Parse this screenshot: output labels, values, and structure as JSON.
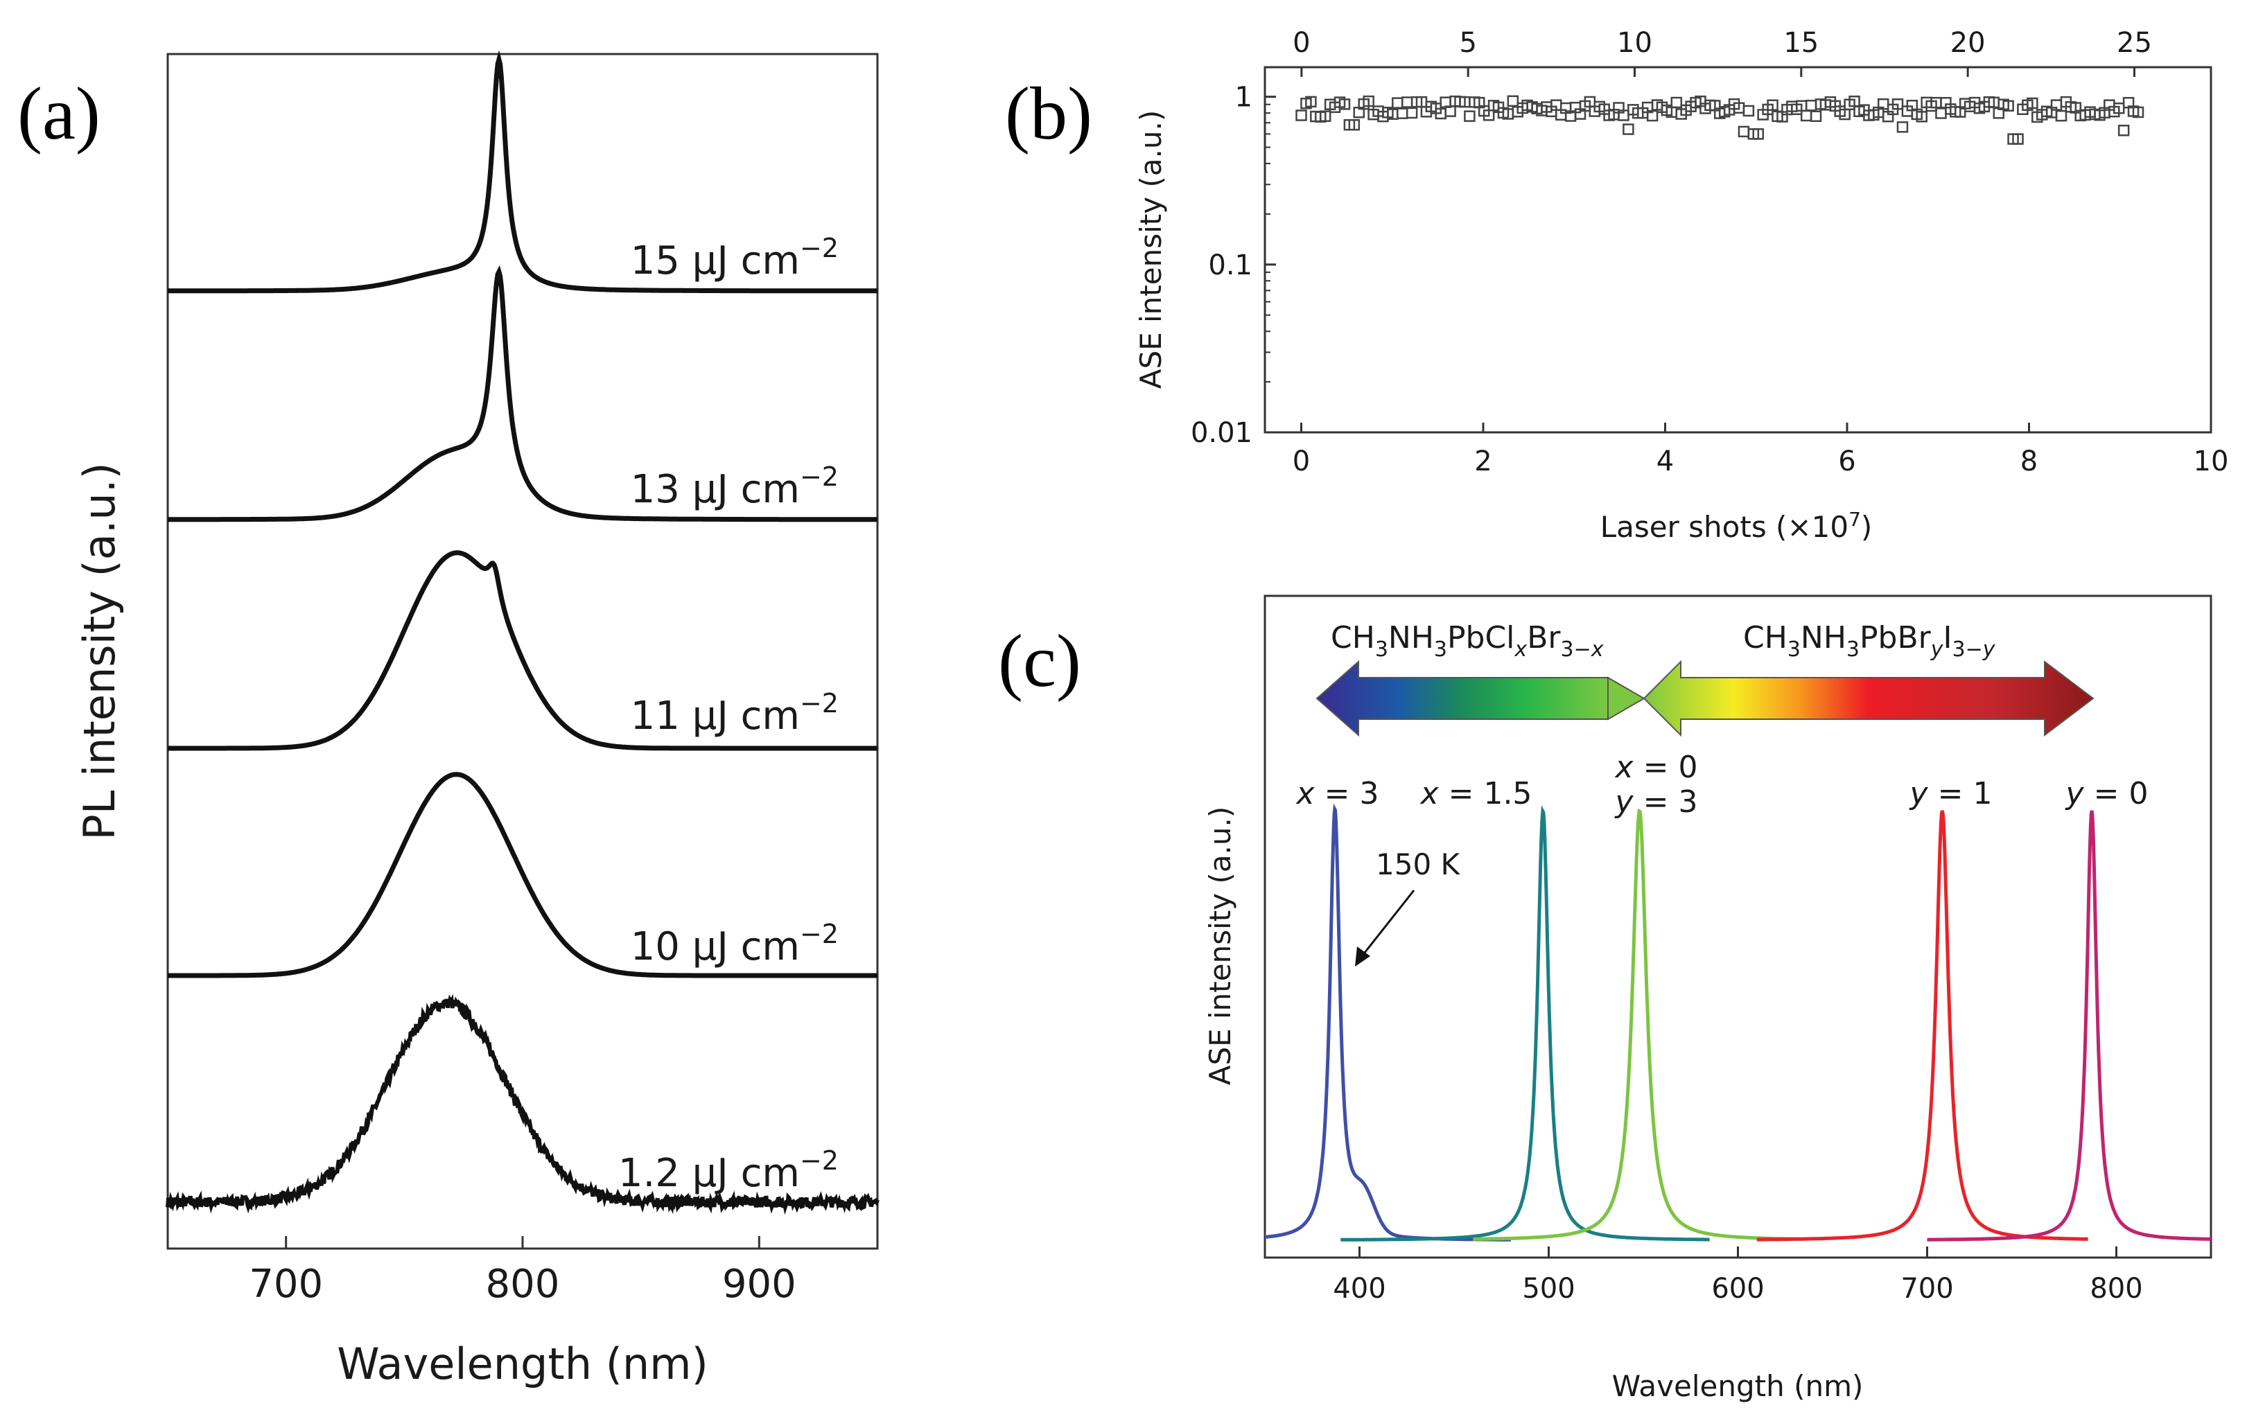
{
  "chart_data": [
    {
      "panel": "(a)",
      "type": "line",
      "xlabel": "Wavelength (nm)",
      "ylabel": "PL intensity (a.u.)",
      "xlim": [
        650,
        950
      ],
      "xticks": [
        700,
        800,
        900
      ],
      "color": "#111111",
      "series": [
        {
          "name": "15 μJ cm⁻²",
          "label_main": "15 μJ cm",
          "label_sup": "−2",
          "peak": 790,
          "peak_height": 0.97,
          "shoulder": 0.07,
          "narrow_width": 3.5,
          "broad_center": 770,
          "broad_width": 20
        },
        {
          "name": "13 μJ cm⁻²",
          "label_main": "13 μJ cm",
          "label_sup": "−2",
          "peak": 790,
          "peak_height": 0.92,
          "shoulder": 0.27,
          "narrow_width": 4.0,
          "broad_center": 770,
          "broad_width": 20
        },
        {
          "name": "11 μJ cm⁻²",
          "label_main": "11 μJ cm",
          "label_sup": "−2",
          "peak": 788,
          "peak_height": 0.15,
          "shoulder": 0.85,
          "narrow_width": 3.0,
          "broad_center": 772,
          "broad_width": 22
        },
        {
          "name": "10 μJ cm⁻²",
          "label_main": "10 μJ cm",
          "label_sup": "−2",
          "peak": 772,
          "peak_height": 0.0,
          "shoulder": 0.88,
          "narrow_width": 3.0,
          "broad_center": 772,
          "broad_width": 24
        },
        {
          "name": "1.2 μJ cm⁻²",
          "label_main": "1.2 μJ cm",
          "label_sup": "−2",
          "peak": 768,
          "peak_height": 0.0,
          "shoulder": 0.87,
          "narrow_width": 3.0,
          "broad_center": 768,
          "broad_width": 25,
          "noisy": true
        }
      ]
    },
    {
      "panel": "(b)",
      "type": "scatter",
      "xlabel_main": "Laser shots (×10",
      "xlabel_sup": "7",
      "xlabel_end": ")",
      "ylabel": "ASE intensity (a.u.)",
      "xlim": [
        -0.4,
        10
      ],
      "xticks": [
        0,
        2,
        4,
        6,
        8,
        10
      ],
      "x2lim": [
        -1.1,
        27.3
      ],
      "x2ticks": [
        0,
        5,
        10,
        15,
        20,
        25
      ],
      "yscale": "log",
      "ylim": [
        0.01,
        1.5
      ],
      "yticks": [
        0.01,
        0.1,
        1
      ],
      "ytick_labels": [
        "0.01",
        "0.1",
        "1"
      ],
      "marker": "open-square",
      "x_start": 0,
      "x_end": 9.2,
      "n_points": 175,
      "mean_value": 0.85,
      "dips": [
        {
          "x": 0.55,
          "y": 0.68
        },
        {
          "x": 3.6,
          "y": 0.64
        },
        {
          "x": 4.85,
          "y": 0.62
        },
        {
          "x": 5.0,
          "y": 0.6
        },
        {
          "x": 6.6,
          "y": 0.66
        },
        {
          "x": 7.85,
          "y": 0.56
        },
        {
          "x": 9.05,
          "y": 0.63
        }
      ]
    },
    {
      "panel": "(c)",
      "type": "line",
      "xlabel": "Wavelength (nm)",
      "ylabel": "ASE intensity (a.u.)",
      "xlim": [
        350,
        850
      ],
      "xticks": [
        400,
        500,
        600,
        700,
        800
      ],
      "arrow_left_label": {
        "a": "CH",
        "b": "3",
        "c": "NH",
        "d": "3",
        "e": "PbCl",
        "f": "x",
        "g": "Br",
        "h": "3−",
        "i": "x"
      },
      "arrow_right_label": {
        "a": "CH",
        "b": "3",
        "c": "NH",
        "d": "3",
        "e": "PbBr",
        "f": "y",
        "g": "I",
        "h": "3−",
        "i": "y"
      },
      "annotation": "150 K",
      "series": [
        {
          "name": "x = 3",
          "var": "x",
          "val": "3",
          "peak": 387,
          "color": "#3f4fa8",
          "range": [
            350,
            480
          ],
          "width": 3.2,
          "shoulder": 402
        },
        {
          "name": "x = 1.5",
          "var": "x",
          "val": "1.5",
          "peak": 497,
          "color": "#1a7f86",
          "range": [
            390,
            585
          ],
          "width": 3.5
        },
        {
          "name": "x = 0, y = 3",
          "var": "x",
          "val": "0",
          "var2": "y",
          "val2": "3",
          "peak": 548,
          "color": "#7cc442",
          "range": [
            460,
            635
          ],
          "width": 4.5
        },
        {
          "name": "y = 1",
          "var": "y",
          "val": "1",
          "peak": 708,
          "color": "#e8232a",
          "range": [
            610,
            785
          ],
          "width": 4.0
        },
        {
          "name": "y = 0",
          "var": "y",
          "val": "0",
          "peak": 787,
          "color": "#c0246e",
          "range": [
            700,
            850
          ],
          "width": 3.2
        }
      ]
    }
  ]
}
